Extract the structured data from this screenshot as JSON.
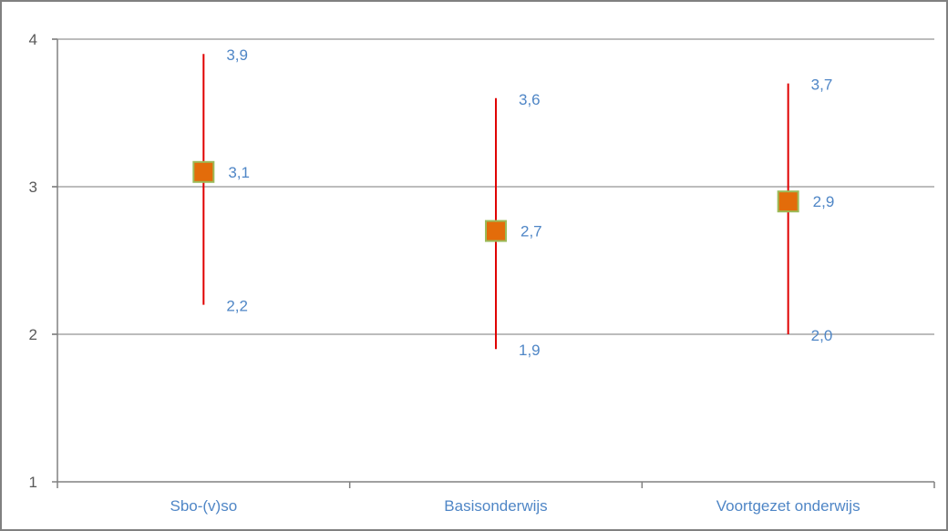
{
  "chart_data": {
    "type": "scatter",
    "categories": [
      "Sbo-(v)so",
      "Basisonderwijs",
      "Voortgezet onderwijs"
    ],
    "points": [
      {
        "category": "Sbo-(v)so",
        "mean": 3.1,
        "upper": 3.9,
        "lower": 2.2,
        "mean_label": "3,1",
        "upper_label": "3,9",
        "lower_label": "2,2"
      },
      {
        "category": "Basisonderwijs",
        "mean": 2.7,
        "upper": 3.6,
        "lower": 1.9,
        "mean_label": "2,7",
        "upper_label": "3,6",
        "lower_label": "1,9"
      },
      {
        "category": "Voortgezet onderwijs",
        "mean": 2.9,
        "upper": 3.7,
        "lower": 2.0,
        "mean_label": "2,9",
        "upper_label": "3,7",
        "lower_label": "2,0"
      }
    ],
    "ylim": [
      1,
      4
    ],
    "yticks": [
      {
        "value": 1,
        "label": "1"
      },
      {
        "value": 2,
        "label": "2"
      },
      {
        "value": 3,
        "label": "3"
      },
      {
        "value": 4,
        "label": "4"
      }
    ],
    "grid": true,
    "colors": {
      "marker_fill": "#E36C0A",
      "marker_border": "#9BBB59",
      "error_bar": "#E00000",
      "labels": "#4F86C6",
      "gridline": "#A6A6A6",
      "axis": "#808080"
    }
  }
}
